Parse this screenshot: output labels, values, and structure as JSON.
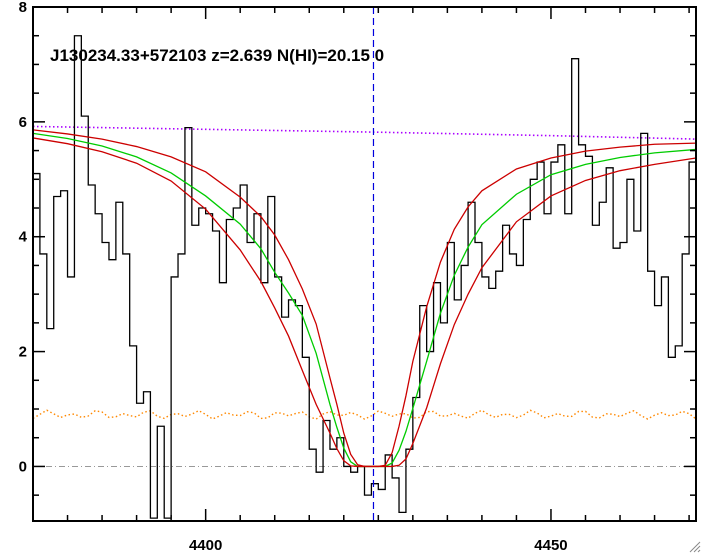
{
  "chart_data": {
    "type": "line",
    "title": "J130234.33+572103 z=2.639 N(HI)=20.15 0",
    "xlabel": "",
    "ylabel": "",
    "xlim": [
      4375,
      4471
    ],
    "ylim": [
      -0.95,
      8
    ],
    "x_ticks": [
      4400,
      4450
    ],
    "y_ticks": [
      0,
      2,
      4,
      6,
      8
    ],
    "grid": false,
    "legend": "none",
    "center_wavelength": 4424.3,
    "zero_level": 0,
    "colors": {
      "data": "#000000",
      "fit": "#00cc00",
      "bounds": "#cc0000",
      "continuum": "#aa00ff",
      "error": "#ff8800",
      "center_marker": "#0000dd",
      "zero_line": "#999999"
    },
    "continuum_points": [
      [
        4375,
        5.92
      ],
      [
        4400,
        5.87
      ],
      [
        4425,
        5.82
      ],
      [
        4450,
        5.76
      ],
      [
        4471,
        5.7
      ]
    ],
    "error_level": 0.9,
    "series": [
      {
        "role": "data-histogram",
        "x": [
          4375.5,
          4376.5,
          4377.5,
          4378.5,
          4379.5,
          4380.5,
          4381.5,
          4382.5,
          4383.5,
          4384.5,
          4385.5,
          4386.5,
          4387.5,
          4388.5,
          4389.5,
          4390.5,
          4391.5,
          4392.5,
          4393.5,
          4394.5,
          4395.5,
          4396.5,
          4397.5,
          4398.5,
          4399.5,
          4400.5,
          4401.5,
          4402.5,
          4403.5,
          4404.5,
          4405.5,
          4406.5,
          4407.5,
          4408.5,
          4409.5,
          4410.5,
          4411.5,
          4412.5,
          4413.5,
          4414.5,
          4415.5,
          4416.5,
          4417.5,
          4418.5,
          4419.5,
          4420.5,
          4421.5,
          4422.5,
          4423.5,
          4424.5,
          4425.5,
          4426.5,
          4427.5,
          4428.5,
          4429.5,
          4430.5,
          4431.5,
          4432.5,
          4433.5,
          4434.5,
          4435.5,
          4436.5,
          4437.5,
          4438.5,
          4439.5,
          4440.5,
          4441.5,
          4442.5,
          4443.5,
          4444.5,
          4445.5,
          4446.5,
          4447.5,
          4448.5,
          4449.5,
          4450.5,
          4451.5,
          4452.5,
          4453.5,
          4454.5,
          4455.5,
          4456.5,
          4457.5,
          4458.5,
          4459.5,
          4460.5,
          4461.5,
          4462.5,
          4463.5,
          4464.5,
          4465.5,
          4466.5,
          4467.5,
          4468.5,
          4469.5,
          4470.5
        ],
        "values": [
          5.1,
          3.7,
          2.4,
          4.7,
          4.8,
          3.3,
          7.5,
          6.1,
          4.9,
          4.4,
          3.9,
          3.6,
          4.6,
          3.7,
          2.1,
          1.1,
          1.3,
          -0.9,
          0.7,
          -0.9,
          3.3,
          3.7,
          5.9,
          4.2,
          4.5,
          4.4,
          4.1,
          3.2,
          4.3,
          4.5,
          4.9,
          3.9,
          4.4,
          3.2,
          4.7,
          3.3,
          2.6,
          2.9,
          2.8,
          1.9,
          0.3,
          -0.1,
          0.8,
          0.3,
          0.5,
          0.0,
          -0.1,
          0.0,
          -0.5,
          -0.3,
          -0.4,
          0.2,
          -0.2,
          -0.8,
          0.3,
          1.2,
          2.8,
          2.0,
          3.2,
          2.5,
          3.9,
          2.9,
          3.5,
          4.6,
          3.9,
          3.3,
          3.1,
          3.4,
          4.2,
          3.7,
          3.5,
          4.3,
          5.0,
          5.3,
          4.4,
          5.3,
          5.6,
          4.4,
          7.1,
          5.6,
          5.4,
          4.2,
          4.6,
          5.2,
          3.8,
          3.9,
          5.0,
          4.1,
          5.8,
          3.4,
          2.8,
          3.3,
          1.9,
          2.1,
          3.7,
          5.3
        ]
      },
      {
        "role": "voigt-fit",
        "name": "",
        "x": [
          4375,
          4380,
          4385,
          4390,
          4395,
          4400,
          4405,
          4408,
          4410,
          4412,
          4414,
          4416,
          4418,
          4419,
          4420,
          4421,
          4422,
          4423,
          4424,
          4425,
          4426,
          4427,
          4428,
          4429,
          4430,
          4432,
          4434,
          4436,
          4438,
          4440,
          4445,
          4450,
          4455,
          4460,
          4465,
          4471
        ],
        "values": [
          5.8,
          5.71,
          5.58,
          5.39,
          5.11,
          4.71,
          4.22,
          3.79,
          3.38,
          3.02,
          2.63,
          1.97,
          1.08,
          0.68,
          0.32,
          0.08,
          0.0,
          0.0,
          0.0,
          0.0,
          0.0,
          0.06,
          0.28,
          0.61,
          1.01,
          1.83,
          2.67,
          3.33,
          3.82,
          4.21,
          4.74,
          5.08,
          5.26,
          5.38,
          5.46,
          5.52
        ]
      },
      {
        "role": "upper-bound",
        "x": [
          4375,
          4380,
          4385,
          4390,
          4395,
          4400,
          4405,
          4408,
          4410,
          4412,
          4414,
          4416,
          4418,
          4419,
          4420,
          4421,
          4422,
          4423,
          4424,
          4425,
          4426,
          4427,
          4428,
          4429,
          4430,
          4432,
          4434,
          4436,
          4438,
          4440,
          4445,
          4450,
          4455,
          4460,
          4465,
          4471
        ],
        "values": [
          5.86,
          5.79,
          5.7,
          5.57,
          5.39,
          5.13,
          4.69,
          4.35,
          4.03,
          3.6,
          3.09,
          2.48,
          1.54,
          1.08,
          0.58,
          0.21,
          0.03,
          0.0,
          0.0,
          0.0,
          0.02,
          0.24,
          0.7,
          1.23,
          1.83,
          2.78,
          3.56,
          4.13,
          4.52,
          4.8,
          5.18,
          5.37,
          5.49,
          5.56,
          5.61,
          5.63
        ]
      },
      {
        "role": "lower-bound",
        "x": [
          4375,
          4380,
          4385,
          4390,
          4395,
          4400,
          4405,
          4408,
          4410,
          4412,
          4414,
          4416,
          4418,
          4419,
          4420,
          4421,
          4422,
          4423,
          4424,
          4425,
          4426,
          4427,
          4428,
          4429,
          4430,
          4432,
          4434,
          4436,
          4438,
          4440,
          4445,
          4450,
          4455,
          4460,
          4465,
          4471
        ],
        "values": [
          5.72,
          5.62,
          5.48,
          5.28,
          4.97,
          4.48,
          3.77,
          3.22,
          2.76,
          2.27,
          1.67,
          1.08,
          0.58,
          0.31,
          0.1,
          0.01,
          0.0,
          0.0,
          0.0,
          0.0,
          0.0,
          0.0,
          0.02,
          0.13,
          0.4,
          1.02,
          1.79,
          2.47,
          3.0,
          3.46,
          4.26,
          4.71,
          4.98,
          5.15,
          5.26,
          5.37
        ]
      }
    ]
  }
}
